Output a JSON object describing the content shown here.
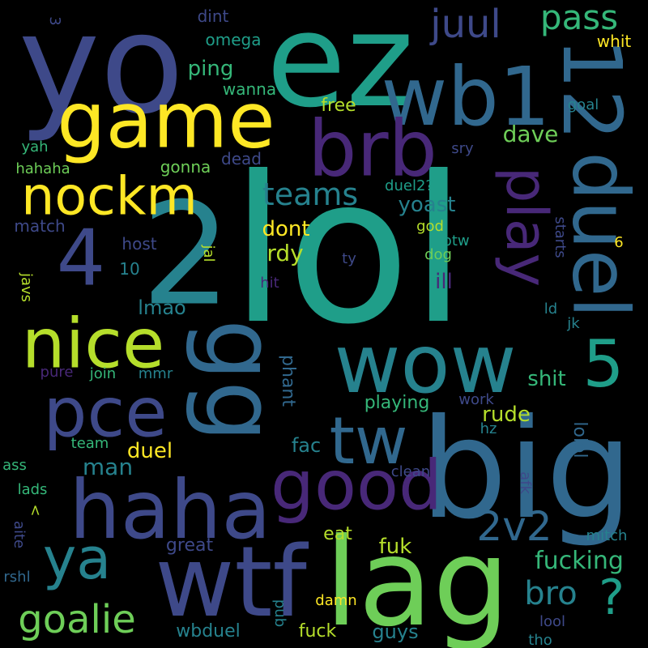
{
  "palette": {
    "background": "#000000",
    "yellow": "#fde725",
    "lime": "#b5de2b",
    "green": "#6ece58",
    "seagreen": "#35b779",
    "teal": "#1f9e89",
    "tealblue": "#26828e",
    "blue": "#31688e",
    "indigo": "#3e4989",
    "purple": "#482878",
    "darkpurple": "#440154"
  },
  "words": [
    {
      "text": "lol",
      "color": "teal"
    },
    {
      "text": "yo",
      "color": "indigo"
    },
    {
      "text": "ez",
      "color": "teal"
    },
    {
      "text": "2",
      "color": "tealblue"
    },
    {
      "text": "big",
      "color": "blue"
    },
    {
      "text": "lag",
      "color": "green"
    },
    {
      "text": "wtf",
      "color": "indigo"
    },
    {
      "text": "wb1",
      "color": "blue"
    },
    {
      "text": "12",
      "color": "blue"
    },
    {
      "text": "game",
      "color": "yellow"
    },
    {
      "text": "brb",
      "color": "purple"
    },
    {
      "text": "wow",
      "color": "tealblue"
    },
    {
      "text": "haha",
      "color": "indigo"
    },
    {
      "text": "gg",
      "color": "blue"
    },
    {
      "text": "duel",
      "color": "blue"
    },
    {
      "text": "nice",
      "color": "lime"
    },
    {
      "text": "pce",
      "color": "indigo"
    },
    {
      "text": "4",
      "color": "indigo"
    },
    {
      "text": "tw",
      "color": "blue"
    },
    {
      "text": "5",
      "color": "teal"
    },
    {
      "text": "good",
      "color": "purple"
    },
    {
      "text": "nockm",
      "color": "yellow"
    },
    {
      "text": "ya",
      "color": "tealblue"
    },
    {
      "text": "play",
      "color": "purple"
    },
    {
      "text": "2v2",
      "color": "blue"
    },
    {
      "text": "goalie",
      "color": "green"
    },
    {
      "text": "juul",
      "color": "indigo"
    },
    {
      "text": "pass",
      "color": "seagreen"
    },
    {
      "text": "?",
      "color": "teal"
    },
    {
      "text": "bro",
      "color": "tealblue"
    },
    {
      "text": "teams",
      "color": "tealblue"
    },
    {
      "text": "fucking",
      "color": "seagreen"
    },
    {
      "text": "ping",
      "color": "seagreen"
    },
    {
      "text": "dave",
      "color": "green"
    },
    {
      "text": "yoast",
      "color": "tealblue"
    },
    {
      "text": "dont",
      "color": "yellow"
    },
    {
      "text": "rdy",
      "color": "lime"
    },
    {
      "text": "duel",
      "color": "yellow"
    },
    {
      "text": "shit",
      "color": "seagreen"
    },
    {
      "text": "playing",
      "color": "seagreen"
    },
    {
      "text": "rude",
      "color": "lime"
    },
    {
      "text": "fuk",
      "color": "lime"
    },
    {
      "text": "man",
      "color": "tealblue"
    },
    {
      "text": "ill",
      "color": "purple"
    },
    {
      "text": "lmao",
      "color": "tealblue"
    },
    {
      "text": "fac",
      "color": "tealblue"
    },
    {
      "text": "phant",
      "color": "blue"
    },
    {
      "text": "lolol",
      "color": "blue"
    },
    {
      "text": "guys",
      "color": "tealblue"
    },
    {
      "text": "fuck",
      "color": "lime"
    },
    {
      "text": "wbduel",
      "color": "tealblue"
    },
    {
      "text": "eat",
      "color": "lime"
    },
    {
      "text": "great",
      "color": "indigo"
    },
    {
      "text": "free",
      "color": "lime"
    },
    {
      "text": "wanna",
      "color": "seagreen"
    },
    {
      "text": "omega",
      "color": "teal"
    },
    {
      "text": "dint",
      "color": "indigo"
    },
    {
      "text": "whit",
      "color": "yellow"
    },
    {
      "text": "goal",
      "color": "tealblue"
    },
    {
      "text": "sry",
      "color": "indigo"
    },
    {
      "text": "dead",
      "color": "indigo"
    },
    {
      "text": "gonna",
      "color": "green"
    },
    {
      "text": "duel2?",
      "color": "teal"
    },
    {
      "text": "hahaha",
      "color": "green"
    },
    {
      "text": "yah",
      "color": "seagreen"
    },
    {
      "text": "match",
      "color": "indigo"
    },
    {
      "text": "host",
      "color": "indigo"
    },
    {
      "text": "10",
      "color": "tealblue"
    },
    {
      "text": "jal",
      "color": "lime"
    },
    {
      "text": "ty",
      "color": "indigo"
    },
    {
      "text": "hit",
      "color": "purple"
    },
    {
      "text": "god",
      "color": "lime"
    },
    {
      "text": "btw",
      "color": "teal"
    },
    {
      "text": "dog",
      "color": "green"
    },
    {
      "text": "starts",
      "color": "indigo"
    },
    {
      "text": "6",
      "color": "yellow"
    },
    {
      "text": "ld",
      "color": "tealblue"
    },
    {
      "text": "jk",
      "color": "tealblue"
    },
    {
      "text": "javs",
      "color": "lime"
    },
    {
      "text": "pure",
      "color": "purple"
    },
    {
      "text": "join",
      "color": "seagreen"
    },
    {
      "text": "mmr",
      "color": "tealblue"
    },
    {
      "text": "work",
      "color": "indigo"
    },
    {
      "text": "hz",
      "color": "tealblue"
    },
    {
      "text": "team",
      "color": "seagreen"
    },
    {
      "text": "ass",
      "color": "seagreen"
    },
    {
      "text": "lads",
      "color": "seagreen"
    },
    {
      "text": "<",
      "color": "lime"
    },
    {
      "text": "aite",
      "color": "indigo"
    },
    {
      "text": "rshl",
      "color": "blue"
    },
    {
      "text": "clean",
      "color": "indigo"
    },
    {
      "text": "afk",
      "color": "indigo"
    },
    {
      "text": "mitch",
      "color": "tealblue"
    },
    {
      "text": "pub",
      "color": "tealblue"
    },
    {
      "text": "damn",
      "color": "yellow"
    },
    {
      "text": "lool",
      "color": "indigo"
    },
    {
      "text": "tho",
      "color": "tealblue"
    },
    {
      "text": "3",
      "color": "indigo"
    }
  ]
}
